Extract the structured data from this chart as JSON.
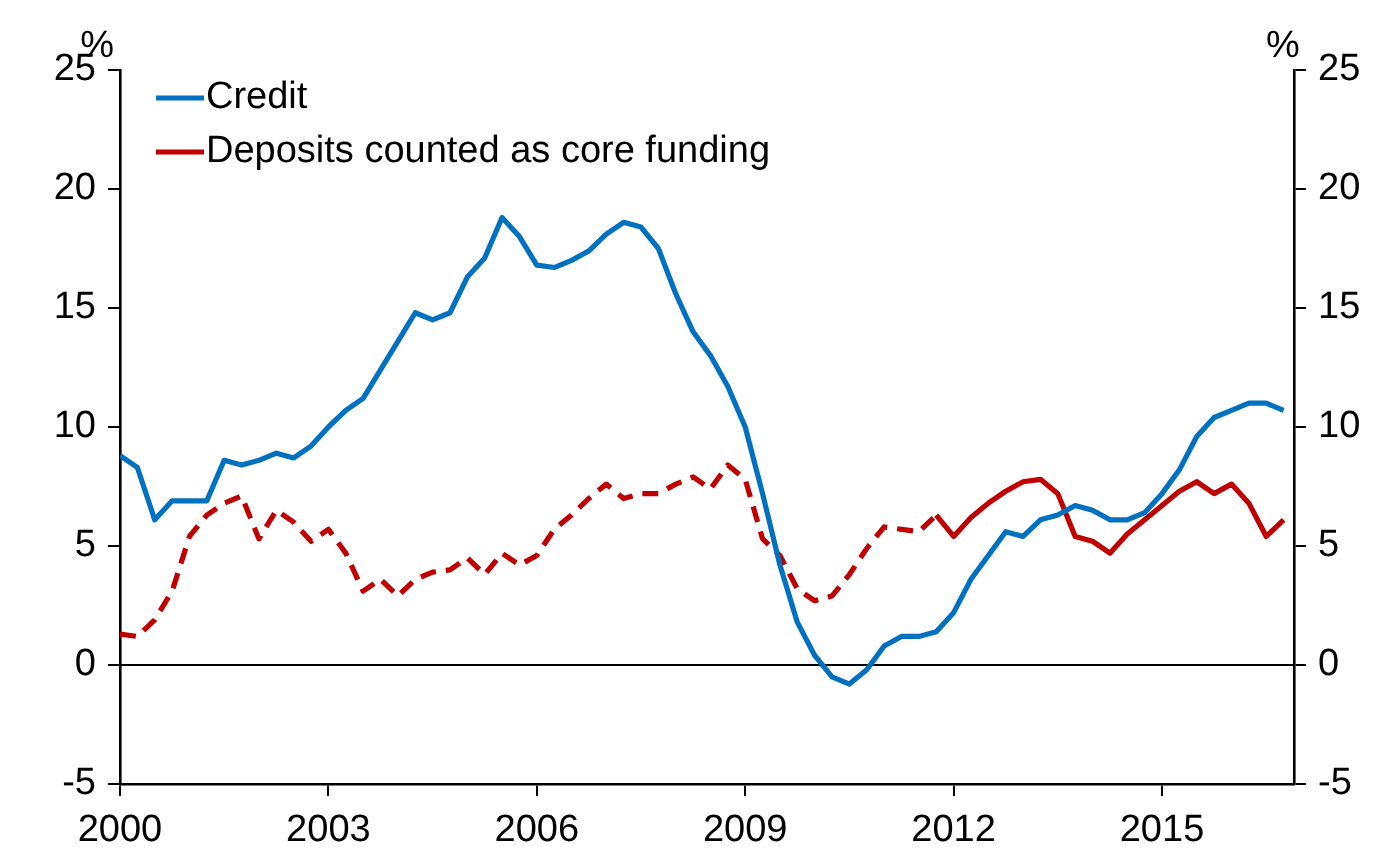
{
  "chart_data": {
    "type": "line",
    "ylabel": "%",
    "y2label": "%",
    "legend": "top left",
    "grid": false,
    "marker": "none",
    "xlim": [
      2000,
      2016.9
    ],
    "xticks": [
      2000,
      2003,
      2006,
      2009,
      2012,
      2015
    ],
    "ylim": [
      -5,
      25
    ],
    "yticks": [
      -5,
      0,
      5,
      10,
      15,
      20,
      25
    ],
    "y2lim": [
      -5,
      25
    ],
    "y2ticks": [
      -5,
      0,
      5,
      10,
      15,
      20,
      25
    ],
    "ref_lines": [
      {
        "axis": "y",
        "value": 0,
        "color": "#000000"
      }
    ],
    "series": [
      {
        "name": "Credit",
        "color": "#0070c0",
        "line_style": "solid",
        "x": [
          2000,
          2000.25,
          2000.5,
          2000.75,
          2001,
          2001.25,
          2001.5,
          2001.75,
          2002,
          2002.25,
          2002.5,
          2002.75,
          2003,
          2003.25,
          2003.5,
          2003.75,
          2004,
          2004.25,
          2004.5,
          2004.75,
          2005,
          2005.25,
          2005.5,
          2005.75,
          2006,
          2006.25,
          2006.5,
          2006.75,
          2007,
          2007.25,
          2007.5,
          2007.75,
          2008,
          2008.25,
          2008.5,
          2008.75,
          2009,
          2009.25,
          2009.5,
          2009.75,
          2010,
          2010.25,
          2010.5,
          2010.75,
          2011,
          2011.25,
          2011.5,
          2011.75,
          2012,
          2012.25,
          2012.5,
          2012.75,
          2013,
          2013.25,
          2013.5,
          2013.75,
          2014,
          2014.25,
          2014.5,
          2014.75,
          2015,
          2015.25,
          2015.5,
          2015.75,
          2016,
          2016.25,
          2016.5,
          2016.75
        ],
        "values": [
          8.8,
          8.3,
          6.1,
          6.9,
          6.9,
          6.9,
          8.6,
          8.4,
          8.6,
          8.9,
          8.7,
          9.2,
          10.0,
          10.7,
          11.2,
          12.4,
          13.6,
          14.8,
          14.5,
          14.8,
          16.3,
          17.1,
          18.8,
          18.0,
          16.8,
          16.7,
          17.0,
          17.4,
          18.1,
          18.6,
          18.4,
          17.5,
          15.6,
          14.0,
          13.0,
          11.7,
          10.0,
          7.2,
          4.2,
          1.8,
          0.4,
          -0.5,
          -0.8,
          -0.2,
          0.8,
          1.2,
          1.2,
          1.4,
          2.2,
          3.6,
          4.6,
          5.6,
          5.4,
          6.1,
          6.3,
          6.7,
          6.5,
          6.1,
          6.1,
          6.4,
          7.2,
          8.2,
          9.6,
          10.4,
          10.7,
          11.0,
          11.0,
          10.7
        ]
      },
      {
        "name": "Deposits counted as core funding",
        "color": "#c00000",
        "line_style": "solid",
        "x": [
          2011.75,
          2012,
          2012.25,
          2012.5,
          2012.75,
          2013,
          2013.25,
          2013.5,
          2013.75,
          2014,
          2014.25,
          2014.5,
          2014.75,
          2015,
          2015.25,
          2015.5,
          2015.75,
          2016,
          2016.25,
          2016.5,
          2016.75
        ],
        "values": [
          6.3,
          5.4,
          6.2,
          6.8,
          7.3,
          7.7,
          7.8,
          7.2,
          5.4,
          5.2,
          4.7,
          5.5,
          6.1,
          6.7,
          7.3,
          7.7,
          7.2,
          7.6,
          6.8,
          5.4,
          6.1
        ]
      },
      {
        "color": "#c00000",
        "line_style": "dashed",
        "x": [
          2000,
          2000.25,
          2000.5,
          2000.75,
          2001,
          2001.25,
          2001.5,
          2001.75,
          2002,
          2002.25,
          2002.5,
          2002.75,
          2003,
          2003.25,
          2003.5,
          2003.75,
          2004,
          2004.25,
          2004.5,
          2004.75,
          2005,
          2005.25,
          2005.5,
          2005.75,
          2006,
          2006.25,
          2006.5,
          2006.75,
          2007,
          2007.25,
          2007.5,
          2007.75,
          2008,
          2008.25,
          2008.5,
          2008.75,
          2009,
          2009.25,
          2009.5,
          2009.75,
          2010,
          2010.25,
          2010.5,
          2010.75,
          2011,
          2011.25,
          2011.5,
          2011.75
        ],
        "values": [
          1.3,
          1.2,
          1.9,
          3.1,
          5.4,
          6.3,
          6.8,
          7.1,
          5.3,
          6.5,
          6.0,
          5.2,
          5.7,
          4.7,
          3.1,
          3.6,
          2.9,
          3.6,
          3.9,
          4.0,
          4.5,
          3.8,
          4.7,
          4.2,
          4.6,
          5.7,
          6.3,
          7.0,
          7.6,
          7.0,
          7.2,
          7.2,
          7.6,
          7.9,
          7.4,
          8.4,
          7.8,
          5.3,
          4.6,
          3.2,
          2.7,
          2.9,
          3.8,
          4.9,
          5.8,
          5.7,
          5.6,
          6.3
        ]
      }
    ]
  }
}
